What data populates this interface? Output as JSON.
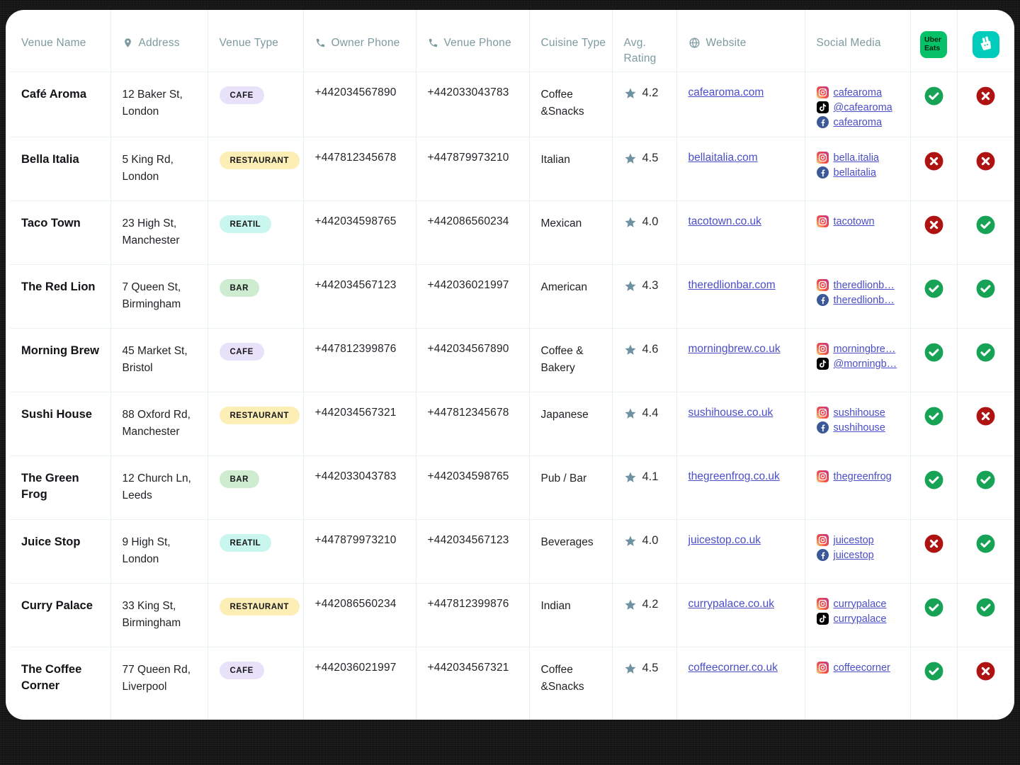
{
  "colors": {
    "card_bg": "#ffffff",
    "page_bg": "#121212",
    "header_text": "#7d9aa0",
    "link": "#4a4ec7",
    "star": "#6e92a2",
    "status_yes": "#17a356",
    "status_no": "#ae1312",
    "ubereats_bg": "#06c167",
    "deliveroo_bg": "#00ccbc"
  },
  "brand": {
    "ubereats": {
      "lines": [
        "Uber",
        "Eats"
      ]
    },
    "deliveroo": {
      "name": "Deliveroo"
    }
  },
  "table": {
    "columns": [
      {
        "key": "name",
        "label": "Venue Name",
        "icon": null
      },
      {
        "key": "address",
        "label": "Address",
        "icon": "location-pin-icon"
      },
      {
        "key": "type",
        "label": "Venue Type",
        "icon": null
      },
      {
        "key": "owner_phone",
        "label": "Owner Phone",
        "icon": "phone-icon"
      },
      {
        "key": "venue_phone",
        "label": "Venue Phone",
        "icon": "phone-icon"
      },
      {
        "key": "cuisine",
        "label": "Cuisine Type",
        "icon": null
      },
      {
        "key": "rating",
        "label": "Avg. Rating",
        "icon": null
      },
      {
        "key": "website",
        "label": "Website",
        "icon": "globe-icon"
      },
      {
        "key": "social",
        "label": "Social Media",
        "icon": null
      },
      {
        "key": "ubereats",
        "label": "Uber Eats",
        "icon": "ubereats-logo"
      },
      {
        "key": "deliveroo",
        "label": "Deliveroo",
        "icon": "deliveroo-logo"
      }
    ],
    "type_styles": {
      "CAFE": "#e8e1fa",
      "RESTAURANT": "#fceeb4",
      "REATIL": "#c9f6ef",
      "BAR": "#ceedd0"
    },
    "rows": [
      {
        "name": "Café Aroma",
        "address": "12 Baker St, London",
        "type": "CAFE",
        "owner_phone": "+442034567890",
        "venue_phone": "+442033043783",
        "cuisine": "Coffee &Snacks",
        "rating": "4.2",
        "website": "cafearoma.com",
        "social": [
          {
            "platform": "instagram",
            "handle": "cafearoma"
          },
          {
            "platform": "tiktok",
            "handle": "@cafearoma"
          },
          {
            "platform": "facebook",
            "handle": "cafearoma"
          }
        ],
        "ubereats": true,
        "deliveroo": false
      },
      {
        "name": "Bella Italia",
        "address": "5 King Rd, London",
        "type": "RESTAURANT",
        "owner_phone": "+447812345678",
        "venue_phone": "+447879973210",
        "cuisine": "Italian",
        "rating": "4.5",
        "website": "bellaitalia.com",
        "social": [
          {
            "platform": "instagram",
            "handle": "bella.italia"
          },
          {
            "platform": "facebook",
            "handle": "bellaitalia"
          }
        ],
        "ubereats": false,
        "deliveroo": false
      },
      {
        "name": "Taco Town",
        "address": "23 High St, Manchester",
        "type": "REATIL",
        "owner_phone": "+442034598765",
        "venue_phone": "+442086560234",
        "cuisine": "Mexican",
        "rating": "4.0",
        "website": "tacotown.co.uk",
        "social": [
          {
            "platform": "instagram",
            "handle": "tacotown"
          }
        ],
        "ubereats": false,
        "deliveroo": true
      },
      {
        "name": "The Red Lion",
        "address": "7 Queen St, Birmingham",
        "type": "BAR",
        "owner_phone": "+442034567123",
        "venue_phone": "+442036021997",
        "cuisine": "American",
        "rating": "4.3",
        "website": "theredlionbar.com",
        "social": [
          {
            "platform": "instagram",
            "handle": "theredlionb…"
          },
          {
            "platform": "facebook",
            "handle": "theredlionb…"
          }
        ],
        "ubereats": true,
        "deliveroo": true
      },
      {
        "name": "Morning Brew",
        "address": "45 Market St, Bristol",
        "type": "CAFE",
        "owner_phone": "+447812399876",
        "venue_phone": "+442034567890",
        "cuisine": "Coffee & Bakery",
        "rating": "4.6",
        "website": "morningbrew.co.uk",
        "social": [
          {
            "platform": "instagram",
            "handle": "morningbre…"
          },
          {
            "platform": "tiktok",
            "handle": "@morningb…"
          }
        ],
        "ubereats": true,
        "deliveroo": true
      },
      {
        "name": "Sushi House",
        "address": "88 Oxford Rd, Manchester",
        "type": "RESTAURANT",
        "owner_phone": "+442034567321",
        "venue_phone": "+447812345678",
        "cuisine": "Japanese",
        "rating": "4.4",
        "website": "sushihouse.co.uk",
        "social": [
          {
            "platform": "instagram",
            "handle": "sushihouse"
          },
          {
            "platform": "facebook",
            "handle": "sushihouse"
          }
        ],
        "ubereats": true,
        "deliveroo": false
      },
      {
        "name": "The Green Frog",
        "address": "12 Church Ln, Leeds",
        "type": "BAR",
        "owner_phone": "+442033043783",
        "venue_phone": "+442034598765",
        "cuisine": "Pub / Bar",
        "rating": "4.1",
        "website": "thegreenfrog.co.uk",
        "social": [
          {
            "platform": "instagram",
            "handle": "thegreenfrog"
          }
        ],
        "ubereats": true,
        "deliveroo": true
      },
      {
        "name": "Juice Stop",
        "address": "9 High St, London",
        "type": "REATIL",
        "owner_phone": "+447879973210",
        "venue_phone": "+442034567123",
        "cuisine": "Beverages",
        "rating": "4.0",
        "website": "juicestop.co.uk",
        "social": [
          {
            "platform": "instagram",
            "handle": "juicestop"
          },
          {
            "platform": "facebook",
            "handle": "juicestop"
          }
        ],
        "ubereats": false,
        "deliveroo": true
      },
      {
        "name": "Curry Palace",
        "address": "33 King St, Birmingham",
        "type": "RESTAURANT",
        "owner_phone": "+442086560234",
        "venue_phone": "+447812399876",
        "cuisine": "Indian",
        "rating": "4.2",
        "website": "currypalace.co.uk",
        "social": [
          {
            "platform": "instagram",
            "handle": "currypalace"
          },
          {
            "platform": "tiktok",
            "handle": "currypalace"
          }
        ],
        "ubereats": true,
        "deliveroo": true
      },
      {
        "name": "The Coffee Corner",
        "address": "77 Queen Rd, Liverpool",
        "type": "CAFE",
        "owner_phone": "+442036021997",
        "venue_phone": "+442034567321",
        "cuisine": "Coffee &Snacks",
        "rating": "4.5",
        "website": "coffeecorner.co.uk",
        "social": [
          {
            "platform": "instagram",
            "handle": "coffeecorner"
          }
        ],
        "ubereats": true,
        "deliveroo": false
      }
    ]
  }
}
